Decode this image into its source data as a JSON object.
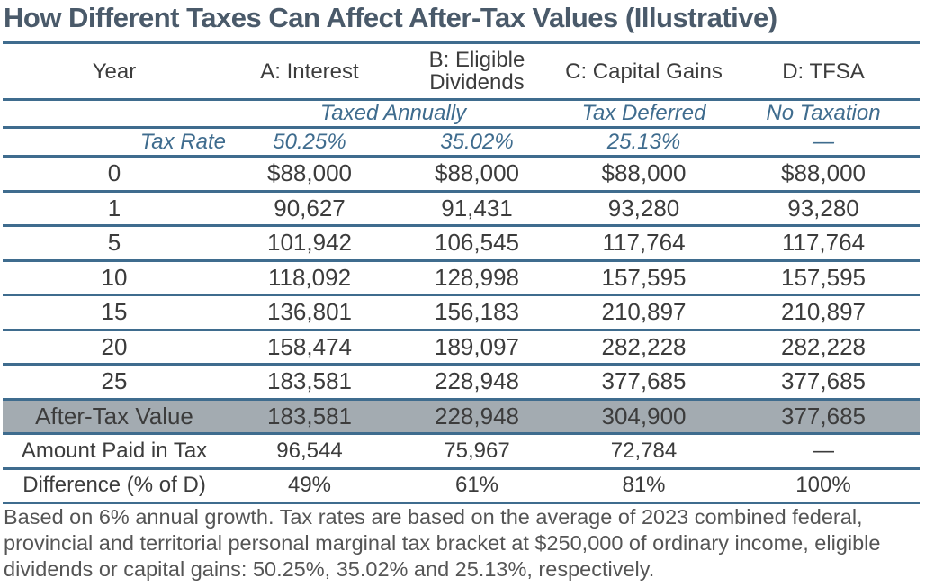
{
  "title": "How Different Taxes Can Affect After-Tax Values (Illustrative)",
  "columns": [
    "Year",
    "A: Interest",
    "B: Eligible Dividends",
    "C: Capital Gains",
    "D: TFSA"
  ],
  "column_lines": {
    "b_line1": "B: Eligible",
    "b_line2": "Dividends"
  },
  "treatment": {
    "taxed_annually": "Taxed Annually",
    "tax_deferred": "Tax Deferred",
    "no_taxation": "No Taxation"
  },
  "tax_rate": {
    "label": "Tax Rate",
    "a": "50.25%",
    "b": "35.02%",
    "c": "25.13%",
    "d": "—"
  },
  "rows": [
    {
      "year": "0",
      "a": "$88,000",
      "b": "$88,000",
      "c": "$88,000",
      "d": "$88,000"
    },
    {
      "year": "1",
      "a": "90,627",
      "b": "91,431",
      "c": "93,280",
      "d": "93,280"
    },
    {
      "year": "5",
      "a": "101,942",
      "b": "106,545",
      "c": "117,764",
      "d": "117,764"
    },
    {
      "year": "10",
      "a": "118,092",
      "b": "128,998",
      "c": "157,595",
      "d": "157,595"
    },
    {
      "year": "15",
      "a": "136,801",
      "b": "156,183",
      "c": "210,897",
      "d": "210,897"
    },
    {
      "year": "20",
      "a": "158,474",
      "b": "189,097",
      "c": "282,228",
      "d": "282,228"
    },
    {
      "year": "25",
      "a": "183,581",
      "b": "228,948",
      "c": "377,685",
      "d": "377,685"
    }
  ],
  "summary": [
    {
      "label": "After-Tax Value",
      "a": "183,581",
      "b": "228,948",
      "c": "304,900",
      "d": "377,685"
    },
    {
      "label": "Amount Paid in Tax",
      "a": "96,544",
      "b": "75,967",
      "c": "72,784",
      "d": "—"
    },
    {
      "label": "Difference (% of D)",
      "a": "49%",
      "b": "61%",
      "c": "81%",
      "d": "100%"
    }
  ],
  "footnote": "Based on 6% annual growth. Tax rates are based on the average of 2023 combined federal, provincial and territorial personal marginal tax bracket at $250,000 of ordinary income, eligible dividends or capital gains: 50.25%, 35.02% and 25.13%, respectively.",
  "colors": {
    "accent": "#3f6c8e",
    "title": "#4a5a6a",
    "highlight_row": "#a3abb1"
  }
}
